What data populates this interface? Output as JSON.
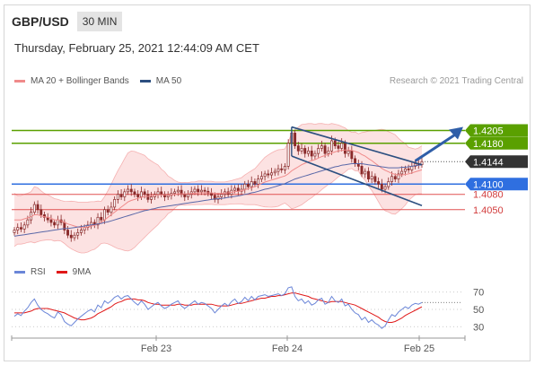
{
  "header": {
    "symbol": "GBP/USD",
    "period": "30 MIN"
  },
  "timestamp": "Thursday, February 25, 2021 12:44:09 AM CET",
  "legend": {
    "items": [
      {
        "label": "MA 20 + Bollinger Bands",
        "color": "#f08a8a"
      },
      {
        "label": "MA 50",
        "color": "#2c4f80"
      }
    ],
    "credit": "Research © 2021 Trading Central"
  },
  "rsi_legend": {
    "items": [
      {
        "label": "RSI",
        "color": "#6b86d8"
      },
      {
        "label": "9MA",
        "color": "#e01818"
      }
    ]
  },
  "chart_data": {
    "type": "candlestick",
    "ylim": [
      1.396,
      1.4285
    ],
    "x_tick_labels": [
      "Feb 23",
      "Feb 24",
      "Feb 25"
    ],
    "levels": [
      {
        "value": 1.4205,
        "label": "1.4205",
        "kind": "resistance",
        "color": "#5aa000"
      },
      {
        "value": 1.418,
        "label": "1.4180",
        "kind": "resistance",
        "color": "#5aa000"
      },
      {
        "value": 1.4144,
        "label": "1.4144",
        "kind": "last-price",
        "color": "#333333"
      },
      {
        "value": 1.41,
        "label": "1.4100",
        "kind": "pivot",
        "color": "#2f6fe0"
      },
      {
        "value": 1.408,
        "label": "1.4080",
        "kind": "support",
        "color": "#e05050"
      },
      {
        "value": 1.405,
        "label": "1.4050",
        "kind": "support",
        "color": "#e05050"
      }
    ],
    "closes": [
      1.401,
      1.4015,
      1.4012,
      1.402,
      1.403,
      1.4045,
      1.406,
      1.405,
      1.404,
      1.4035,
      1.403,
      1.4025,
      1.402,
      1.403,
      1.4025,
      1.401,
      1.4,
      1.3995,
      1.4,
      1.4005,
      1.401,
      1.4015,
      1.402,
      1.4025,
      1.402,
      1.4035,
      1.403,
      1.405,
      1.4045,
      1.4055,
      1.407,
      1.408,
      1.4075,
      1.4085,
      1.409,
      1.4085,
      1.408,
      1.4075,
      1.4085,
      1.408,
      1.407,
      1.4075,
      1.408,
      1.4085,
      1.408,
      1.4075,
      1.4078,
      1.4082,
      1.4085,
      1.4088,
      1.408,
      1.4075,
      1.408,
      1.4085,
      1.409,
      1.4085,
      1.4088,
      1.4086,
      1.4082,
      1.4078,
      1.407,
      1.4075,
      1.408,
      1.4085,
      1.408,
      1.4088,
      1.4092,
      1.4086,
      1.409,
      1.41,
      1.4095,
      1.4105,
      1.41,
      1.411,
      1.4115,
      1.412,
      1.4118,
      1.4122,
      1.4125,
      1.413,
      1.4128,
      1.4135,
      1.418,
      1.42,
      1.4175,
      1.4165,
      1.417,
      1.416,
      1.4165,
      1.4155,
      1.416,
      1.417,
      1.4175,
      1.416,
      1.4165,
      1.4185,
      1.4175,
      1.417,
      1.418,
      1.416,
      1.4165,
      1.415,
      1.414,
      1.4135,
      1.412,
      1.4125,
      1.411,
      1.4115,
      1.4105,
      1.41,
      1.409,
      1.4095,
      1.4105,
      1.4115,
      1.411,
      1.412,
      1.4125,
      1.413,
      1.4128,
      1.4135,
      1.414,
      1.4138,
      1.4144
    ],
    "ma20": [
      1.403,
      1.403,
      1.403,
      1.4032,
      1.4034,
      1.4036,
      1.404,
      1.404,
      1.4038,
      1.4036,
      1.4035,
      1.4033,
      1.403,
      1.403,
      1.4028,
      1.4025,
      1.4022,
      1.402,
      1.4018,
      1.4016,
      1.4015,
      1.4015,
      1.4016,
      1.4018,
      1.4019,
      1.4022,
      1.4025,
      1.403,
      1.4035,
      1.404,
      1.4045,
      1.405,
      1.4055,
      1.406,
      1.4065,
      1.4068,
      1.407,
      1.4072,
      1.4074,
      1.4076,
      1.4076,
      1.4077,
      1.4078,
      1.4079,
      1.4079,
      1.4079,
      1.4079,
      1.4079,
      1.408,
      1.4081,
      1.4081,
      1.4081,
      1.4081,
      1.4082,
      1.4082,
      1.4083,
      1.4083,
      1.4083,
      1.4083,
      1.4083,
      1.4082,
      1.4082,
      1.4082,
      1.4082,
      1.4083,
      1.4084,
      1.4085,
      1.4086,
      1.4087,
      1.4089,
      1.4091,
      1.4093,
      1.4095,
      1.4098,
      1.4101,
      1.4104,
      1.4106,
      1.4108,
      1.411,
      1.4112,
      1.4114,
      1.4116,
      1.412,
      1.4126,
      1.413,
      1.4134,
      1.4138,
      1.4141,
      1.4144,
      1.4146,
      1.4148,
      1.4151,
      1.4154,
      1.4156,
      1.4158,
      1.4161,
      1.4163,
      1.4165,
      1.4166,
      1.4167,
      1.4167,
      1.4166,
      1.4164,
      1.4162,
      1.4158,
      1.4155,
      1.415,
      1.4146,
      1.4141,
      1.4136,
      1.4131,
      1.4127,
      1.4124,
      1.4121,
      1.4119,
      1.4118,
      1.4118,
      1.4119,
      1.412,
      1.4122,
      1.4124,
      1.4126,
      1.4128
    ],
    "ma50": [
      1.3998,
      1.3999,
      1.4,
      1.4001,
      1.4002,
      1.4003,
      1.4004,
      1.4005,
      1.4006,
      1.4007,
      1.4008,
      1.4009,
      1.401,
      1.4011,
      1.4012,
      1.4013,
      1.4013,
      1.4014,
      1.4015,
      1.4016,
      1.4017,
      1.4018,
      1.4019,
      1.402,
      1.4021,
      1.4022,
      1.4023,
      1.4025,
      1.4026,
      1.4028,
      1.403,
      1.4032,
      1.4034,
      1.4036,
      1.4038,
      1.404,
      1.4042,
      1.4044,
      1.4046,
      1.4048,
      1.4049,
      1.4051,
      1.4052,
      1.4054,
      1.4055,
      1.4056,
      1.4057,
      1.4058,
      1.4059,
      1.406,
      1.4061,
      1.4062,
      1.4063,
      1.4064,
      1.4065,
      1.4066,
      1.4067,
      1.4068,
      1.4069,
      1.407,
      1.4071,
      1.4071,
      1.4072,
      1.4073,
      1.4074,
      1.4075,
      1.4076,
      1.4077,
      1.4078,
      1.408,
      1.4081,
      1.4083,
      1.4084,
      1.4086,
      1.4088,
      1.409,
      1.4091,
      1.4093,
      1.4095,
      1.4097,
      1.4099,
      1.4101,
      1.4104,
      1.4107,
      1.411,
      1.4112,
      1.4114,
      1.4116,
      1.4118,
      1.412,
      1.4122,
      1.4124,
      1.4126,
      1.4128,
      1.413,
      1.4132,
      1.4134,
      1.4135,
      1.4137,
      1.4138,
      1.4139,
      1.414,
      1.414,
      1.414,
      1.414,
      1.4139,
      1.4138,
      1.4137,
      1.4136,
      1.4135,
      1.4134,
      1.4133,
      1.4132,
      1.4132,
      1.4132,
      1.4132,
      1.4133,
      1.4133,
      1.4134,
      1.4135,
      1.4136,
      1.4137,
      1.4138
    ],
    "channel": {
      "upper": [
        [
          83,
          1.4212
        ],
        [
          122,
          1.4138
        ]
      ],
      "lower": [
        [
          83,
          1.4155
        ],
        [
          122,
          1.4058
        ]
      ]
    },
    "rsi_axis": {
      "ylim": [
        22,
        78
      ],
      "ticks": [
        70,
        50,
        30
      ]
    },
    "rsi": [
      42,
      45,
      43,
      48,
      52,
      58,
      62,
      55,
      50,
      47,
      45,
      42,
      40,
      47,
      44,
      36,
      33,
      31,
      35,
      39,
      42,
      45,
      48,
      50,
      47,
      55,
      52,
      60,
      57,
      60,
      64,
      66,
      62,
      65,
      66,
      62,
      58,
      55,
      60,
      56,
      50,
      53,
      56,
      58,
      54,
      51,
      53,
      56,
      58,
      60,
      54,
      51,
      54,
      57,
      60,
      56,
      58,
      57,
      54,
      51,
      46,
      50,
      54,
      57,
      54,
      59,
      62,
      57,
      59,
      64,
      60,
      65,
      61,
      65,
      66,
      67,
      65,
      66,
      67,
      68,
      66,
      68,
      75,
      76,
      65,
      60,
      62,
      57,
      60,
      55,
      57,
      61,
      63,
      56,
      58,
      65,
      60,
      58,
      62,
      54,
      56,
      50,
      46,
      44,
      38,
      41,
      35,
      38,
      34,
      32,
      28,
      31,
      38,
      44,
      42,
      47,
      50,
      53,
      51,
      55,
      57,
      56,
      58
    ],
    "rsi_ma": [
      46,
      46,
      46,
      46,
      47,
      48,
      50,
      51,
      51,
      51,
      51,
      50,
      49,
      48,
      47,
      46,
      44,
      42,
      40,
      39,
      38,
      38,
      39,
      40,
      42,
      45,
      47,
      49,
      51,
      53,
      56,
      58,
      59,
      61,
      62,
      62,
      62,
      61,
      61,
      60,
      58,
      57,
      56,
      56,
      55,
      55,
      55,
      55,
      55,
      56,
      56,
      55,
      55,
      55,
      56,
      56,
      56,
      56,
      56,
      56,
      55,
      54,
      54,
      54,
      54,
      55,
      56,
      57,
      57,
      58,
      59,
      60,
      61,
      62,
      63,
      63,
      64,
      65,
      65,
      66,
      66,
      67,
      68,
      69,
      69,
      68,
      67,
      66,
      65,
      63,
      62,
      61,
      60,
      59,
      58,
      59,
      59,
      59,
      59,
      58,
      57,
      56,
      55,
      53,
      51,
      49,
      47,
      45,
      43,
      41,
      38,
      36,
      35,
      35,
      36,
      38,
      40,
      43,
      45,
      47,
      49,
      51,
      53
    ]
  }
}
